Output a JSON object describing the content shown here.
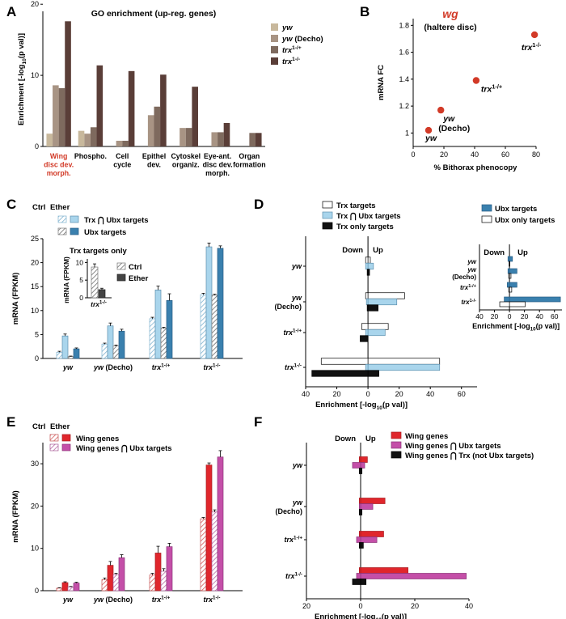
{
  "figure": {
    "colors": {
      "yw": "#c8b89c",
      "ywDecho": "#a89484",
      "trxHet": "#7e6a5e",
      "trxHom": "#5a3e38",
      "red_dot": "#d23a27",
      "light_blue": "#a9d5ec",
      "dark_blue": "#3a80ae",
      "red": "#e0262c",
      "magenta": "#c44fa8",
      "highlight": "#d23a27"
    }
  },
  "chart_data": [
    {
      "panel": "A",
      "type": "bar",
      "title": "GO enrichment (up-reg. genes)",
      "ylabel": "Enrichment [-log10(p val)]",
      "ylabel_parts": [
        "Enrichment [-log",
        "10",
        "(p val)]"
      ],
      "ylim": [
        0,
        19
      ],
      "yticks": [
        "0",
        "10",
        "20"
      ],
      "categories": [
        [
          "Wing",
          "disc dev.",
          "morph."
        ],
        [
          "Phospho."
        ],
        [
          "Cell",
          "cycle"
        ],
        [
          "Epithel",
          "dev."
        ],
        [
          "Cytoskel",
          "organiz."
        ],
        [
          "Eye-ant.",
          "disc dev.",
          "morph."
        ],
        [
          "Organ",
          "formation"
        ]
      ],
      "highlight_category": 0,
      "series": [
        {
          "name": "yw",
          "base": "yw",
          "sup": "",
          "color_key": "yw",
          "values": [
            1.8,
            2.2,
            0,
            0,
            0,
            0,
            0
          ]
        },
        {
          "name": "yw (Decho)",
          "base": "yw",
          "sup": "",
          "suffix": " (Decho)",
          "color_key": "ywDecho",
          "values": [
            8.6,
            1.8,
            0.8,
            4.4,
            2.6,
            2.0,
            0
          ]
        },
        {
          "name": "trx1-/+",
          "base": "trx",
          "sup": "1-/+",
          "color_key": "trxHet",
          "values": [
            8.2,
            2.7,
            0.8,
            5.6,
            2.6,
            2.0,
            1.9
          ]
        },
        {
          "name": "trx1-/-",
          "base": "trx",
          "sup": "1-/-",
          "color_key": "trxHom",
          "values": [
            17.6,
            11.4,
            10.6,
            10.1,
            8.4,
            3.3,
            1.9
          ]
        }
      ]
    },
    {
      "panel": "B",
      "type": "scatter",
      "title": "wg",
      "subtitle": "(haltere disc)",
      "xlabel": "% Bithorax phenocopy",
      "ylabel": "mRNA FC",
      "xlim": [
        0,
        80
      ],
      "ylim": [
        0.9,
        1.85
      ],
      "xticks": [
        "0",
        "20",
        "40",
        "60",
        "80"
      ],
      "yticks": [
        "1",
        "1.2",
        "1.4",
        "1.6",
        "1.8"
      ],
      "x": [
        10,
        18,
        41,
        79
      ],
      "y": [
        1.02,
        1.17,
        1.39,
        1.73
      ],
      "point_labels": [
        {
          "base": "yw",
          "sup": ""
        },
        {
          "base": "yw",
          "sup": "",
          "line2": "(Decho)"
        },
        {
          "base": "trx",
          "sup": "1-/+"
        },
        {
          "base": "trx",
          "sup": "1-/-"
        }
      ]
    },
    {
      "panel": "C",
      "type": "bar",
      "ylabel": "mRNA (FPKM)",
      "ylim": [
        0,
        25
      ],
      "yticks": [
        "0",
        "5",
        "10",
        "15",
        "20",
        "25"
      ],
      "legend_header": [
        "Ctrl",
        "Ether"
      ],
      "legend": [
        "Trx ⋂ Ubx targets",
        "Ubx targets"
      ],
      "categories": [
        {
          "base": "yw",
          "sup": ""
        },
        {
          "base": "yw (Decho)",
          "sup": ""
        },
        {
          "base": "trx",
          "sup": "1-/+"
        },
        {
          "base": "trx",
          "sup": "1-/-"
        }
      ],
      "series": [
        {
          "name": "Trx ⋂ Ubx targets Ctrl",
          "style": "hatch_blue",
          "values": [
            1.3,
            3.0,
            8.3,
            13.3
          ],
          "errors": [
            0.2,
            0.2,
            0.3,
            0.3
          ]
        },
        {
          "name": "Trx ⋂ Ubx targets Ether",
          "style": "light_blue",
          "values": [
            4.7,
            6.8,
            14.3,
            23.3
          ],
          "errors": [
            0.4,
            0.6,
            0.8,
            0.8
          ]
        },
        {
          "name": "Ubx targets Ctrl",
          "style": "hatch_gray",
          "values": [
            0.4,
            2.6,
            6.3,
            13.2
          ],
          "errors": [
            0.1,
            0.2,
            0.2,
            0.2
          ]
        },
        {
          "name": "Ubx targets Ether",
          "style": "dark_blue",
          "values": [
            2.0,
            5.7,
            12.1,
            23.0
          ],
          "errors": [
            0.2,
            0.4,
            1.4,
            0.5
          ]
        }
      ],
      "inset": {
        "title": "Trx targets only",
        "ylabel": "mRNA (FPKM)",
        "ylim": [
          0,
          11
        ],
        "yticks": [
          "0",
          "5",
          "10"
        ],
        "category": {
          "base": "trx",
          "sup": "1-/-"
        },
        "legend": [
          "Ctrl",
          "Ether"
        ],
        "values": [
          8.7,
          2.3
        ],
        "errors": [
          0.9,
          0.4
        ]
      }
    },
    {
      "panel": "D",
      "type": "bar",
      "orientation": "horizontal",
      "xlabel": "Enrichment [-log10(p val)]",
      "xlabel_parts": [
        "Enrichment [-log",
        "10",
        "(p val)]"
      ],
      "xlim": [
        -40,
        70
      ],
      "xticks": [
        "40",
        "20",
        "0",
        "20",
        "40",
        "60"
      ],
      "direction_labels": [
        "Down",
        "Up"
      ],
      "categories": [
        {
          "base": "yw",
          "sup": ""
        },
        {
          "base": "yw",
          "sup": "",
          "line2": "(Decho)"
        },
        {
          "base": "trx",
          "sup": "1-/+"
        },
        {
          "base": "trx",
          "sup": "1-/-"
        }
      ],
      "legend": [
        "Trx targets",
        "Trx ⋂ Ubx targets",
        "Trx only targets"
      ],
      "series": [
        {
          "name": "Trx targets",
          "style": "white",
          "up": [
            1.5,
            23.5,
            13,
            46
          ],
          "down": [
            -1.5,
            -1.5,
            -4,
            -30
          ]
        },
        {
          "name": "Trx ⋂ Ubx targets",
          "style": "light_blue",
          "up": [
            3.5,
            18.5,
            11,
            46
          ],
          "down": [
            -1.5,
            -1.0,
            -1.5,
            -1.5
          ]
        },
        {
          "name": "Trx only targets",
          "style": "black",
          "up": [
            1.0,
            6.5,
            0,
            7
          ],
          "down": [
            -0.5,
            -0.5,
            -5,
            -36
          ]
        }
      ],
      "inset": {
        "legend": [
          "Ubx targets",
          "Ubx only targets"
        ],
        "direction_labels": [
          "Down",
          "Up"
        ],
        "xlim": [
          -40,
          70
        ],
        "xticks": [
          "40",
          "20",
          "0",
          "20",
          "40",
          "60"
        ],
        "xlabel_parts": [
          "Enrichment [-log",
          "10",
          "(p val)]"
        ],
        "categories": [
          {
            "base": "yw",
            "sup": ""
          },
          {
            "base": "yw",
            "sup": "",
            "line2": "(Decho)"
          },
          {
            "base": "trx",
            "sup": "1-/+"
          },
          {
            "base": "trx",
            "sup": "1-/-"
          }
        ],
        "series": [
          {
            "name": "Ubx targets",
            "style": "dark_blue",
            "up": [
              4,
              10,
              10,
              68
            ],
            "down": [
              -2,
              -2,
              -3,
              -7
            ]
          },
          {
            "name": "Ubx only targets",
            "style": "white",
            "up": [
              0.5,
              2,
              3,
              21
            ],
            "down": [
              -0.5,
              -1,
              -1,
              -13
            ]
          }
        ]
      }
    },
    {
      "panel": "E",
      "type": "bar",
      "ylabel": "mRNA (FPKM)",
      "ylim": [
        0,
        35
      ],
      "yticks": [
        "0",
        "10",
        "20",
        "30"
      ],
      "legend_header": [
        "Ctrl",
        "Ether"
      ],
      "legend": [
        "Wing genes",
        "Wing genes ⋂ Ubx targets"
      ],
      "categories": [
        {
          "base": "yw",
          "sup": ""
        },
        {
          "base": "yw (Decho)",
          "sup": ""
        },
        {
          "base": "trx",
          "sup": "1-/+"
        },
        {
          "base": "trx",
          "sup": "1-/-"
        }
      ],
      "series": [
        {
          "name": "Wing genes Ctrl",
          "style": "hatch_red",
          "values": [
            0.6,
            2.6,
            3.7,
            17.0
          ],
          "errors": [
            0.1,
            0.4,
            0.4,
            0.3
          ]
        },
        {
          "name": "Wing genes Ether",
          "style": "red",
          "values": [
            1.9,
            6.0,
            8.9,
            29.7
          ],
          "errors": [
            0.2,
            0.9,
            1.6,
            0.5
          ]
        },
        {
          "name": "Wing genes ⋂ Ubx targets Ctrl",
          "style": "hatch_magenta",
          "values": [
            0.9,
            3.8,
            4.6,
            18.6
          ],
          "errors": [
            0.1,
            0.3,
            0.6,
            0.5
          ]
        },
        {
          "name": "Wing genes ⋂ Ubx targets Ether",
          "style": "magenta",
          "values": [
            1.8,
            7.8,
            10.4,
            31.6
          ],
          "errors": [
            0.2,
            0.7,
            0.8,
            1.5
          ]
        }
      ]
    },
    {
      "panel": "F",
      "type": "bar",
      "orientation": "horizontal",
      "xlabel": "Enrichment [-log10(p val)]",
      "xlabel_parts": [
        "Enrichment [-log",
        "10",
        "(p val)]"
      ],
      "xlim": [
        -20,
        40
      ],
      "xticks": [
        "20",
        "0",
        "20",
        "40"
      ],
      "direction_labels": [
        "Down",
        "Up"
      ],
      "categories": [
        {
          "base": "yw",
          "sup": ""
        },
        {
          "base": "yw",
          "sup": "",
          "line2": "(Decho)"
        },
        {
          "base": "trx",
          "sup": "1-/+"
        },
        {
          "base": "trx",
          "sup": "1-/-"
        }
      ],
      "legend": [
        "Wing genes",
        "Wing genes ⋂ Ubx targets",
        "Wing genes ⋂ Trx (not Ubx targets)"
      ],
      "series": [
        {
          "name": "Wing genes",
          "style": "red",
          "up": [
            2.5,
            9,
            8.5,
            17.5
          ],
          "down": [
            -0.5,
            -0.5,
            -0.5,
            -0.5
          ]
        },
        {
          "name": "Wing genes ⋂ Ubx targets",
          "style": "magenta",
          "up": [
            1.5,
            4.5,
            6,
            39
          ],
          "down": [
            -3,
            -0.5,
            -1.5,
            -1.5
          ]
        },
        {
          "name": "Wing genes ⋂ Trx (not Ubx targets)",
          "style": "black",
          "up": [
            0.5,
            0.5,
            1,
            2
          ],
          "down": [
            -0.5,
            -0.5,
            -0.5,
            -3
          ]
        }
      ]
    }
  ]
}
